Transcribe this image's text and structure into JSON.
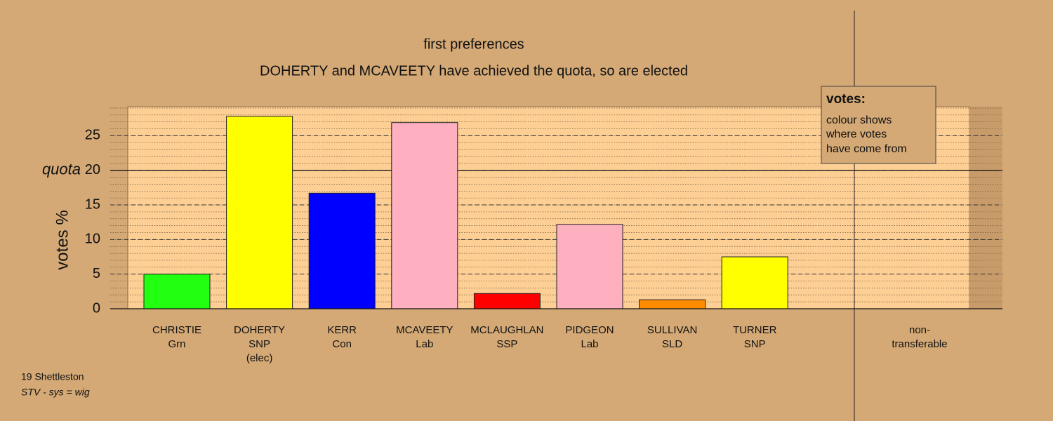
{
  "chart_data": {
    "type": "bar",
    "title": "first preferences",
    "subtitle": "DOHERTY and MCAVEETY have achieved the quota, so are elected",
    "ylabel": "votes %",
    "categories": [
      [
        "CHRISTIE",
        "Grn"
      ],
      [
        "DOHERTY",
        "SNP",
        "(elec)"
      ],
      [
        "KERR",
        "Con"
      ],
      [
        "MCAVEETY",
        "Lab"
      ],
      [
        "MCLAUGHLAN",
        "SSP"
      ],
      [
        "PIDGEON",
        "Lab"
      ],
      [
        "SULLIVAN",
        "SLD"
      ],
      [
        "TURNER",
        "SNP"
      ],
      [
        "non-",
        "transferable"
      ]
    ],
    "values": [
      5.0,
      27.8,
      16.7,
      26.9,
      2.2,
      12.2,
      1.3,
      7.5,
      null
    ],
    "colors": [
      "#22ff11",
      "#ffff00",
      "#0000ff",
      "#ffb0c0",
      "#ff0000",
      "#ffb0c0",
      "#ff8c00",
      "#ffff00",
      null
    ],
    "ylim": [
      0,
      29.2
    ],
    "yticks": [
      0,
      5,
      10,
      15,
      20,
      25
    ],
    "quota": {
      "value": 20,
      "label": "quota"
    },
    "legend": {
      "title": "votes:",
      "lines": [
        "colour shows",
        "where votes",
        "have come from"
      ]
    },
    "footer": [
      "19 Shettleston",
      "STV - sys = wig"
    ]
  }
}
